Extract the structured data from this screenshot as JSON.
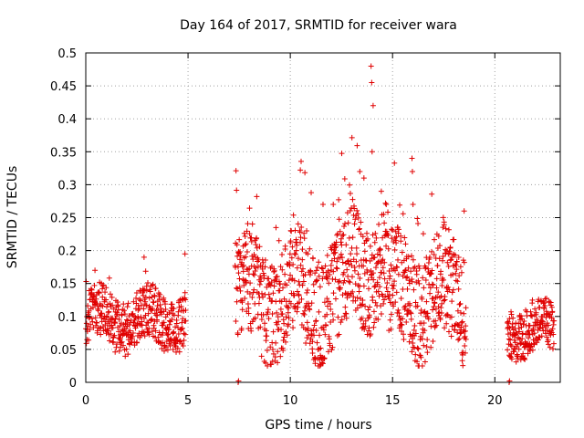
{
  "chart_data": {
    "type": "scatter",
    "title": "Day 164 of 2017, SRMTID for receiver wara",
    "xlabel": "GPS time / hours",
    "ylabel": "SRMTID / TECUs",
    "xlim": [
      0,
      23.2
    ],
    "ylim": [
      0,
      0.5
    ],
    "xticks": [
      0,
      5,
      10,
      15,
      20
    ],
    "yticks": [
      0,
      0.05,
      0.1,
      0.15,
      0.2,
      0.25,
      0.3,
      0.35,
      0.4,
      0.45,
      0.5
    ],
    "xtick_labels": [
      "0",
      "5",
      "10",
      "15",
      "20"
    ],
    "ytick_labels": [
      "0",
      "0.05",
      "0.1",
      "0.15",
      "0.2",
      "0.25",
      "0.3",
      "0.35",
      "0.4",
      "0.45",
      "0.5"
    ],
    "grid": true,
    "marker": "+",
    "color": "#e00000",
    "series": [
      {
        "name": "SRMTID",
        "segments": [
          {
            "x_start": 0.0,
            "x_end": 4.9,
            "y_typical": [
              0.05,
              0.14
            ],
            "y_max": 0.19
          },
          {
            "x_start": 7.3,
            "x_end": 18.6,
            "y_typical": [
              0.04,
              0.22
            ],
            "y_max": 0.48
          },
          {
            "x_start": 20.6,
            "x_end": 22.9,
            "y_typical": [
              0.04,
              0.12
            ],
            "y_max": 0.15
          }
        ],
        "zero_points": [
          7.45,
          20.7
        ],
        "peaks": [
          {
            "x": 13.95,
            "y": 0.48
          },
          {
            "x": 13.98,
            "y": 0.455
          },
          {
            "x": 14.05,
            "y": 0.42
          },
          {
            "x": 14.0,
            "y": 0.35
          },
          {
            "x": 13.4,
            "y": 0.32
          },
          {
            "x": 13.6,
            "y": 0.31
          },
          {
            "x": 15.95,
            "y": 0.34
          },
          {
            "x": 15.97,
            "y": 0.32
          },
          {
            "x": 14.45,
            "y": 0.29
          },
          {
            "x": 16.0,
            "y": 0.27
          },
          {
            "x": 12.1,
            "y": 0.27
          },
          {
            "x": 11.6,
            "y": 0.27
          },
          {
            "x": 18.5,
            "y": 0.26
          },
          {
            "x": 9.3,
            "y": 0.235
          },
          {
            "x": 10.8,
            "y": 0.23
          },
          {
            "x": 4.85,
            "y": 0.195
          },
          {
            "x": 2.85,
            "y": 0.19
          },
          {
            "x": 0.45,
            "y": 0.17
          }
        ]
      }
    ]
  }
}
